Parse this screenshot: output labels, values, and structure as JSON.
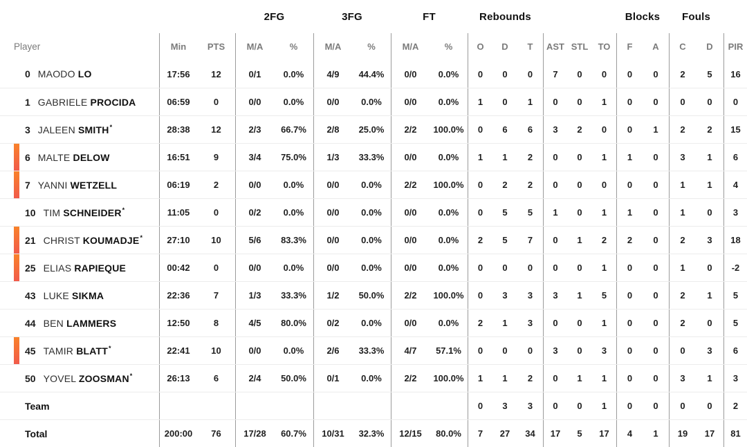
{
  "colors": {
    "accent_bar_top": "#f9822a",
    "accent_bar_bottom": "#f15b4b",
    "divider": "#9a9a9a",
    "row_separator": "#ececec",
    "header_muted": "#7b7b7b",
    "text": "#1f1f1f"
  },
  "header": {
    "groups": {
      "fg2": "2FG",
      "fg3": "3FG",
      "ft": "FT",
      "rebounds": "Rebounds",
      "blocks": "Blocks",
      "fouls": "Fouls"
    },
    "cols": {
      "player": "Player",
      "min": "Min",
      "pts": "PTS",
      "ma": "M/A",
      "pct": "%",
      "o": "O",
      "d": "D",
      "t": "T",
      "ast": "AST",
      "stl": "STL",
      "to": "TO",
      "f": "F",
      "a": "A",
      "c": "C",
      "fd": "D",
      "pir": "PIR"
    }
  },
  "rows": [
    {
      "num": "0",
      "first": "MAODO",
      "last": "LO",
      "star": false,
      "oncourt": false,
      "stats": [
        "17:56",
        "12",
        "0/1",
        "0.0%",
        "4/9",
        "44.4%",
        "0/0",
        "0.0%",
        "0",
        "0",
        "0",
        "7",
        "0",
        "0",
        "0",
        "0",
        "2",
        "5",
        "16"
      ]
    },
    {
      "num": "1",
      "first": "GABRIELE",
      "last": "PROCIDA",
      "star": false,
      "oncourt": false,
      "stats": [
        "06:59",
        "0",
        "0/0",
        "0.0%",
        "0/0",
        "0.0%",
        "0/0",
        "0.0%",
        "1",
        "0",
        "1",
        "0",
        "0",
        "1",
        "0",
        "0",
        "0",
        "0",
        "0"
      ]
    },
    {
      "num": "3",
      "first": "JALEEN",
      "last": "SMITH",
      "star": true,
      "oncourt": false,
      "stats": [
        "28:38",
        "12",
        "2/3",
        "66.7%",
        "2/8",
        "25.0%",
        "2/2",
        "100.0%",
        "0",
        "6",
        "6",
        "3",
        "2",
        "0",
        "0",
        "1",
        "2",
        "2",
        "15"
      ]
    },
    {
      "num": "6",
      "first": "MALTE",
      "last": "DELOW",
      "star": false,
      "oncourt": true,
      "stats": [
        "16:51",
        "9",
        "3/4",
        "75.0%",
        "1/3",
        "33.3%",
        "0/0",
        "0.0%",
        "1",
        "1",
        "2",
        "0",
        "0",
        "1",
        "1",
        "0",
        "3",
        "1",
        "6"
      ]
    },
    {
      "num": "7",
      "first": "YANNI",
      "last": "WETZELL",
      "star": false,
      "oncourt": true,
      "stats": [
        "06:19",
        "2",
        "0/0",
        "0.0%",
        "0/0",
        "0.0%",
        "2/2",
        "100.0%",
        "0",
        "2",
        "2",
        "0",
        "0",
        "0",
        "0",
        "0",
        "1",
        "1",
        "4"
      ]
    },
    {
      "num": "10",
      "first": "TIM",
      "last": "SCHNEIDER",
      "star": true,
      "oncourt": false,
      "stats": [
        "11:05",
        "0",
        "0/2",
        "0.0%",
        "0/0",
        "0.0%",
        "0/0",
        "0.0%",
        "0",
        "5",
        "5",
        "1",
        "0",
        "1",
        "1",
        "0",
        "1",
        "0",
        "3"
      ]
    },
    {
      "num": "21",
      "first": "CHRIST",
      "last": "KOUMADJE",
      "star": true,
      "oncourt": true,
      "stats": [
        "27:10",
        "10",
        "5/6",
        "83.3%",
        "0/0",
        "0.0%",
        "0/0",
        "0.0%",
        "2",
        "5",
        "7",
        "0",
        "1",
        "2",
        "2",
        "0",
        "2",
        "3",
        "18"
      ]
    },
    {
      "num": "25",
      "first": "ELIAS",
      "last": "RAPIEQUE",
      "star": false,
      "oncourt": true,
      "stats": [
        "00:42",
        "0",
        "0/0",
        "0.0%",
        "0/0",
        "0.0%",
        "0/0",
        "0.0%",
        "0",
        "0",
        "0",
        "0",
        "0",
        "1",
        "0",
        "0",
        "1",
        "0",
        "-2"
      ]
    },
    {
      "num": "43",
      "first": "LUKE",
      "last": "SIKMA",
      "star": false,
      "oncourt": false,
      "stats": [
        "22:36",
        "7",
        "1/3",
        "33.3%",
        "1/2",
        "50.0%",
        "2/2",
        "100.0%",
        "0",
        "3",
        "3",
        "3",
        "1",
        "5",
        "0",
        "0",
        "2",
        "1",
        "5"
      ]
    },
    {
      "num": "44",
      "first": "BEN",
      "last": "LAMMERS",
      "star": false,
      "oncourt": false,
      "stats": [
        "12:50",
        "8",
        "4/5",
        "80.0%",
        "0/2",
        "0.0%",
        "0/0",
        "0.0%",
        "2",
        "1",
        "3",
        "0",
        "0",
        "1",
        "0",
        "0",
        "2",
        "0",
        "5"
      ]
    },
    {
      "num": "45",
      "first": "TAMIR",
      "last": "BLATT",
      "star": true,
      "oncourt": true,
      "stats": [
        "22:41",
        "10",
        "0/0",
        "0.0%",
        "2/6",
        "33.3%",
        "4/7",
        "57.1%",
        "0",
        "0",
        "0",
        "3",
        "0",
        "3",
        "0",
        "0",
        "0",
        "3",
        "6"
      ]
    },
    {
      "num": "50",
      "first": "YOVEL",
      "last": "ZOOSMAN",
      "star": true,
      "oncourt": false,
      "stats": [
        "26:13",
        "6",
        "2/4",
        "50.0%",
        "0/1",
        "0.0%",
        "2/2",
        "100.0%",
        "1",
        "1",
        "2",
        "0",
        "1",
        "1",
        "0",
        "0",
        "3",
        "1",
        "3"
      ]
    }
  ],
  "team_row": {
    "label": "Team",
    "stats": [
      "",
      "",
      "",
      "",
      "",
      "",
      "",
      "",
      "0",
      "3",
      "3",
      "0",
      "0",
      "1",
      "0",
      "0",
      "0",
      "0",
      "2"
    ]
  },
  "total_row": {
    "label": "Total",
    "stats": [
      "200:00",
      "76",
      "17/28",
      "60.7%",
      "10/31",
      "32.3%",
      "12/15",
      "80.0%",
      "7",
      "27",
      "34",
      "17",
      "5",
      "17",
      "4",
      "1",
      "19",
      "17",
      "81"
    ]
  }
}
